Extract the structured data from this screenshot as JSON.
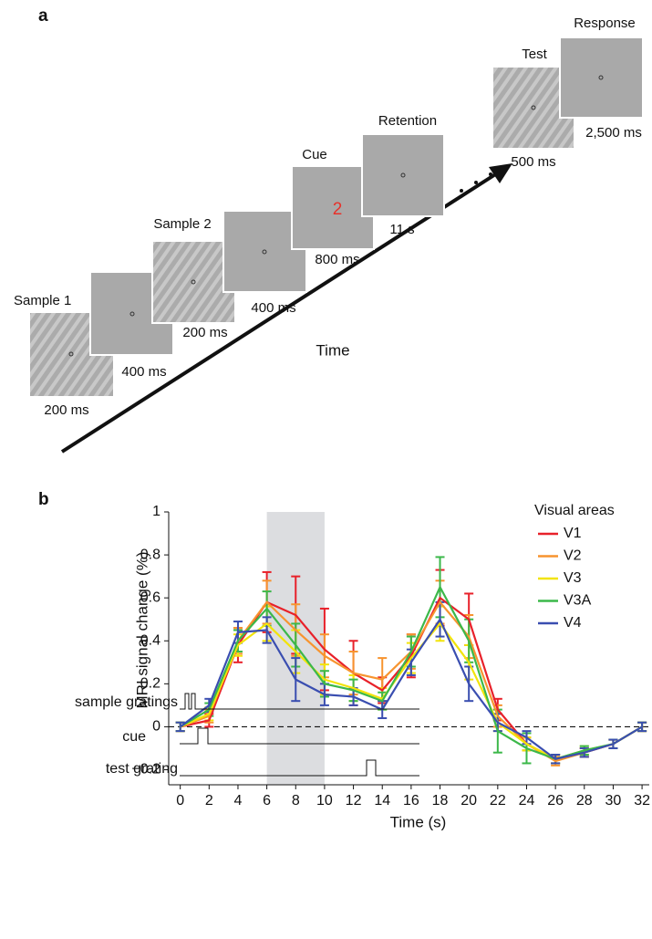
{
  "panel_a": {
    "label": "a",
    "frames": [
      {
        "name": "Sample 1",
        "duration": "200 ms"
      },
      {
        "duration": "400 ms"
      },
      {
        "name": "Sample 2",
        "duration": "200 ms"
      },
      {
        "duration": "400 ms"
      },
      {
        "name": "Cue",
        "digit": "2",
        "duration": "800 ms"
      },
      {
        "name": "Retention",
        "duration": "11 s"
      },
      {
        "name": "Test",
        "duration": "500 ms"
      },
      {
        "name": "Response",
        "duration": "2,500 ms"
      }
    ],
    "time_label": "Time"
  },
  "panel_b": {
    "label": "b"
  },
  "chart_data": {
    "type": "line",
    "xlabel": "Time (s)",
    "ylabel": "MRI signal change (%)",
    "legend_title": "Visual areas",
    "legend": "upper right",
    "x": [
      0,
      2,
      4,
      6,
      8,
      10,
      12,
      14,
      16,
      18,
      20,
      22,
      24,
      26,
      28,
      30,
      32
    ],
    "xlim": [
      -0.8,
      32.5
    ],
    "ylim": [
      -0.27,
      1
    ],
    "xticks": [
      0,
      2,
      4,
      6,
      8,
      10,
      12,
      14,
      16,
      18,
      20,
      22,
      24,
      26,
      28,
      30,
      32
    ],
    "yticks": [
      {
        "value": -0.2,
        "label": "−0.2"
      },
      0,
      0.2,
      0.4,
      0.6,
      0.8,
      1
    ],
    "shaded_x": [
      6,
      10
    ],
    "series": [
      {
        "name": "V1",
        "color": "#e8212a",
        "values": [
          0.0,
          0.03,
          0.38,
          0.58,
          0.52,
          0.36,
          0.25,
          0.17,
          0.33,
          0.6,
          0.5,
          0.08,
          -0.08,
          -0.15,
          -0.12,
          -0.08,
          0.0
        ],
        "errors": [
          0.02,
          0.03,
          0.08,
          0.14,
          0.18,
          0.19,
          0.15,
          0.06,
          0.1,
          0.13,
          0.12,
          0.05,
          0.03,
          0.02,
          0.02,
          0.02,
          0.02
        ]
      },
      {
        "name": "V2",
        "color": "#f7942f",
        "values": [
          0.0,
          0.05,
          0.4,
          0.58,
          0.45,
          0.33,
          0.25,
          0.22,
          0.35,
          0.58,
          0.42,
          0.05,
          -0.08,
          -0.16,
          -0.12,
          -0.08,
          0.0
        ],
        "errors": [
          0.02,
          0.03,
          0.06,
          0.1,
          0.12,
          0.1,
          0.1,
          0.1,
          0.08,
          0.1,
          0.1,
          0.05,
          0.03,
          0.02,
          0.02,
          0.02,
          0.02
        ]
      },
      {
        "name": "V3",
        "color": "#f2e40a",
        "values": [
          0.0,
          0.06,
          0.38,
          0.48,
          0.35,
          0.22,
          0.18,
          0.13,
          0.32,
          0.48,
          0.3,
          0.02,
          -0.08,
          -0.15,
          -0.11,
          -0.08,
          0.0
        ],
        "errors": [
          0.02,
          0.03,
          0.05,
          0.08,
          0.1,
          0.07,
          0.06,
          0.05,
          0.07,
          0.08,
          0.08,
          0.04,
          0.03,
          0.02,
          0.02,
          0.02,
          0.02
        ]
      },
      {
        "name": "V3A",
        "color": "#3cb84a",
        "values": [
          0.0,
          0.08,
          0.4,
          0.55,
          0.38,
          0.2,
          0.17,
          0.12,
          0.35,
          0.65,
          0.4,
          -0.02,
          -0.1,
          -0.15,
          -0.11,
          -0.08,
          0.0
        ],
        "errors": [
          0.02,
          0.03,
          0.05,
          0.08,
          0.1,
          0.06,
          0.05,
          0.04,
          0.07,
          0.14,
          0.1,
          0.1,
          0.07,
          0.02,
          0.02,
          0.02,
          0.02
        ]
      },
      {
        "name": "V4",
        "color": "#3a4eb0",
        "values": [
          0.0,
          0.1,
          0.44,
          0.45,
          0.22,
          0.15,
          0.14,
          0.08,
          0.3,
          0.5,
          0.2,
          0.02,
          -0.05,
          -0.15,
          -0.12,
          -0.08,
          0.0
        ],
        "errors": [
          0.02,
          0.03,
          0.05,
          0.06,
          0.1,
          0.05,
          0.04,
          0.04,
          0.06,
          0.08,
          0.08,
          0.04,
          0.03,
          0.02,
          0.02,
          0.02,
          0.02
        ]
      }
    ]
  },
  "timeline": {
    "rows": [
      "sample gratings",
      "cue",
      "test grating"
    ]
  }
}
